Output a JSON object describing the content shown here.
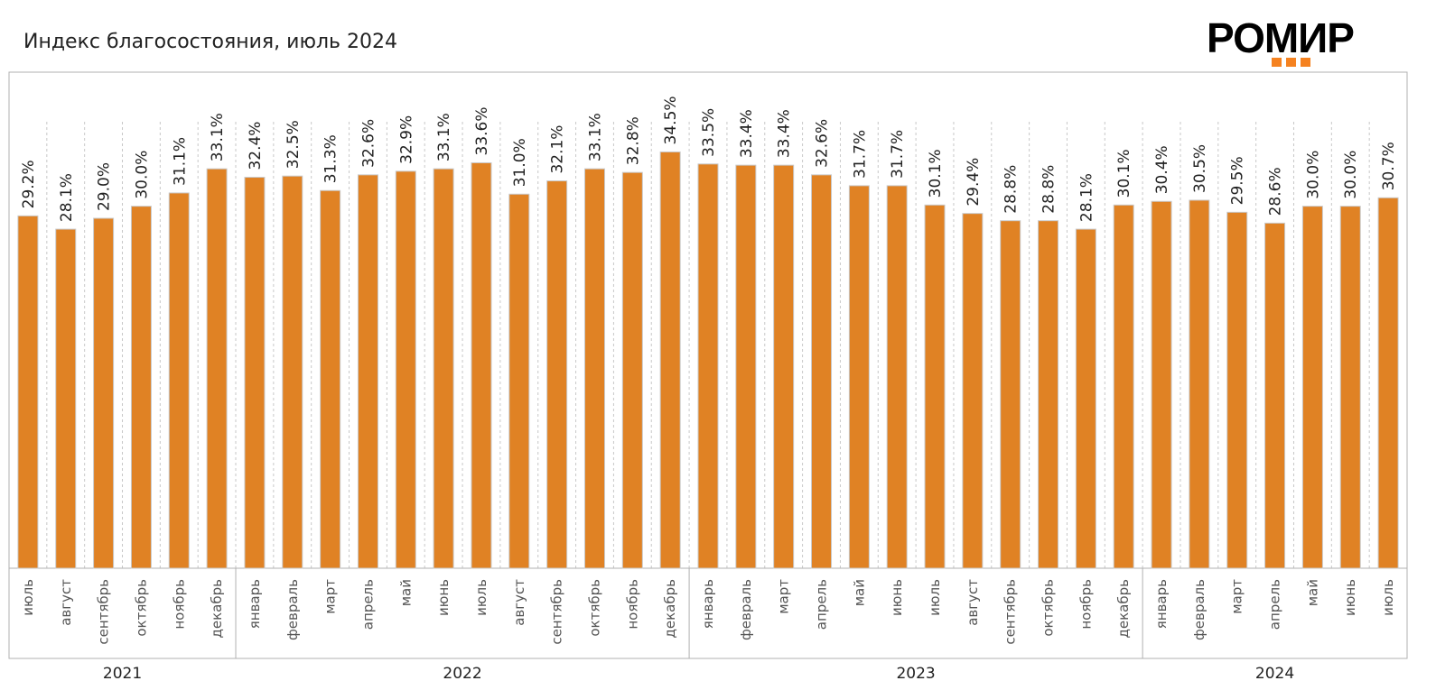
{
  "header": {
    "title": "Индекс благосостояния, июль 2024",
    "logo_text": "РОМИР"
  },
  "colors": {
    "bar": "#e08224",
    "bar_edge": "#c9c9c9",
    "logo_dots": "#f58220"
  },
  "chart_data": {
    "type": "bar",
    "title": "Индекс благосостояния, июль 2024",
    "xlabel": "",
    "ylabel": "",
    "ylim": [
      0,
      37
    ],
    "grid": "vertical-dashed",
    "years": [
      {
        "label": "2021",
        "count": 6
      },
      {
        "label": "2022",
        "count": 12
      },
      {
        "label": "2023",
        "count": 12
      },
      {
        "label": "2024",
        "count": 7
      }
    ],
    "categories": [
      "июль",
      "август",
      "сентябрь",
      "октябрь",
      "ноябрь",
      "декабрь",
      "январь",
      "февраль",
      "март",
      "апрель",
      "май",
      "июнь",
      "июль",
      "август",
      "сентябрь",
      "октябрь",
      "ноябрь",
      "декабрь",
      "январь",
      "февраль",
      "март",
      "апрель",
      "май",
      "июнь",
      "июль",
      "август",
      "сентябрь",
      "октябрь",
      "ноябрь",
      "декабрь",
      "январь",
      "февраль",
      "март",
      "апрель",
      "май",
      "июнь",
      "июль"
    ],
    "values": [
      29.2,
      28.1,
      29.0,
      30.0,
      31.1,
      33.1,
      32.4,
      32.5,
      31.3,
      32.6,
      32.9,
      33.1,
      33.6,
      31.0,
      32.1,
      33.1,
      32.8,
      34.5,
      33.5,
      33.4,
      33.4,
      32.6,
      31.7,
      31.7,
      30.1,
      29.4,
      28.8,
      28.8,
      28.1,
      30.1,
      30.4,
      30.5,
      29.5,
      28.6,
      30.0,
      30.0,
      30.7
    ],
    "value_labels": [
      "29.2%",
      "28.1%",
      "29.0%",
      "30.0%",
      "31.1%",
      "33.1%",
      "32.4%",
      "32.5%",
      "31.3%",
      "32.6%",
      "32.9%",
      "33.1%",
      "33.6%",
      "31.0%",
      "32.1%",
      "33.1%",
      "32.8%",
      "34.5%",
      "33.5%",
      "33.4%",
      "33.4%",
      "32.6%",
      "31.7%",
      "31.7%",
      "30.1%",
      "29.4%",
      "28.8%",
      "28.8%",
      "28.1%",
      "30.1%",
      "30.4%",
      "30.5%",
      "29.5%",
      "28.6%",
      "30.0%",
      "30.0%",
      "30.7%"
    ]
  }
}
